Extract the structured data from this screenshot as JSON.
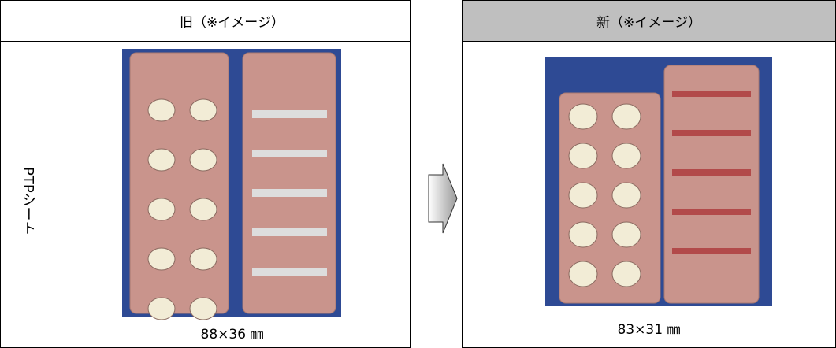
{
  "header": {
    "old": "旧（※イメージ）",
    "new": "新（※イメージ）"
  },
  "row_label": "PTPシート",
  "captions": {
    "old": "88×36 ㎜",
    "new": "83×31 ㎜"
  }
}
